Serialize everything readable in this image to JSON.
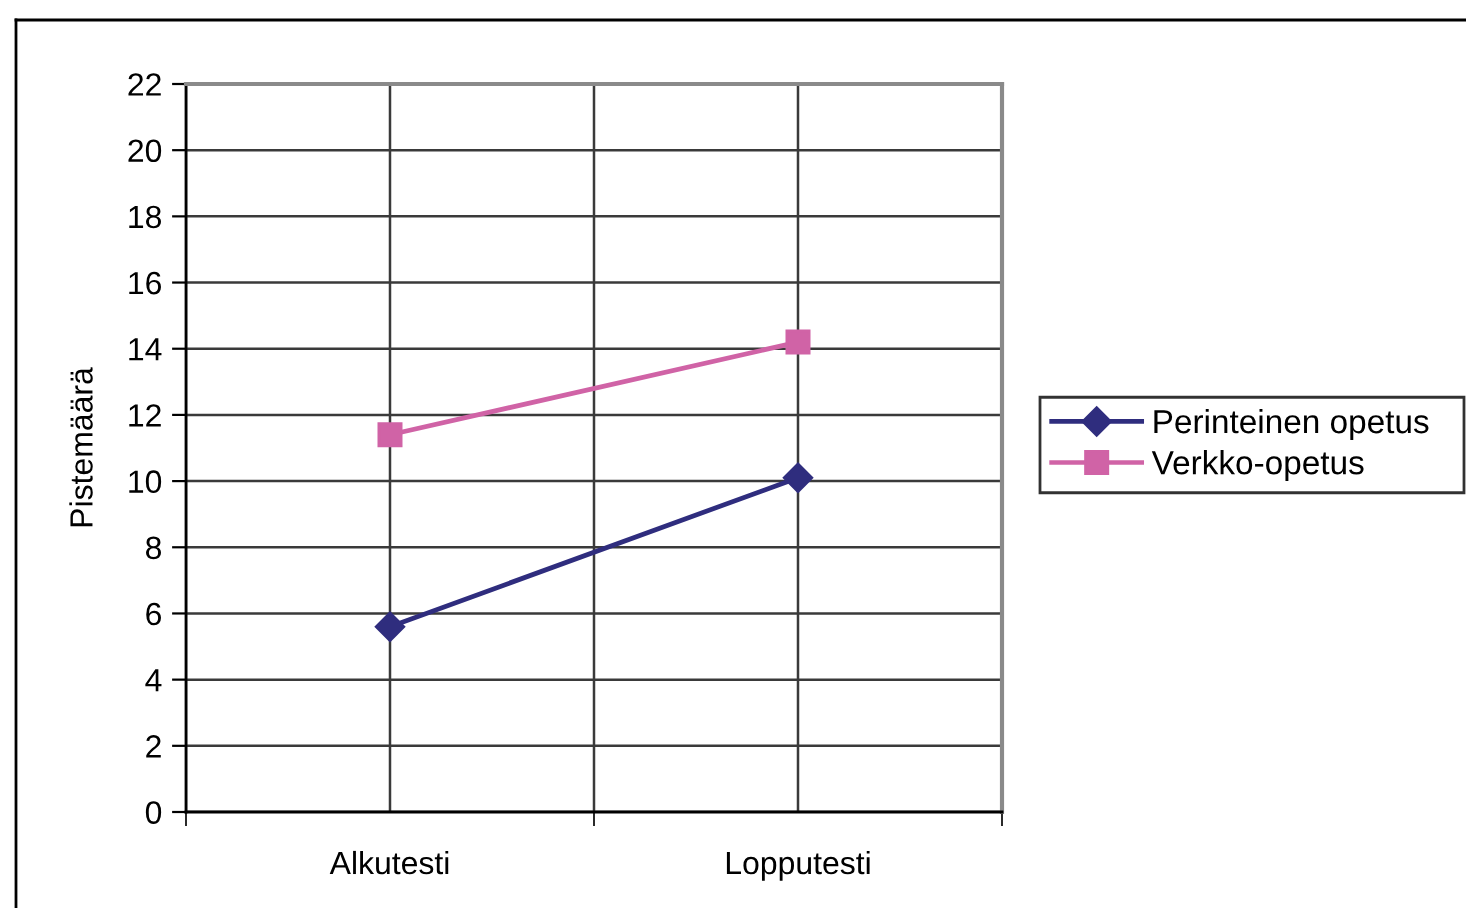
{
  "chart_data": {
    "type": "line",
    "ylabel": "Pistemäärä",
    "categories": [
      "Alkutesti",
      "Lopputesti"
    ],
    "series": [
      {
        "name": "Perinteinen opetus",
        "color": "#2f2d7e",
        "marker": "diamond",
        "values": [
          5.6,
          10.1
        ]
      },
      {
        "name": "Verkko-opetus",
        "color": "#d063a6",
        "marker": "square",
        "values": [
          11.4,
          14.2
        ]
      }
    ],
    "ylim": [
      0,
      22
    ],
    "yticks": [
      0,
      2,
      4,
      6,
      8,
      10,
      12,
      14,
      16,
      18,
      20,
      22
    ],
    "grid": true,
    "legend": "right",
    "line_style": "solid"
  }
}
